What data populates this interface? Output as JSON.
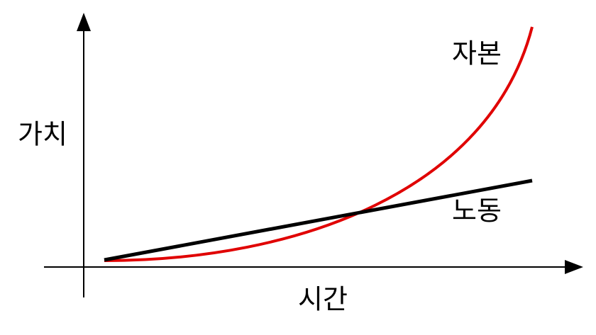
{
  "axes": {
    "y_label": "가치",
    "x_label": "시간"
  },
  "curves": [
    {
      "label": "자본"
    },
    {
      "label": "노동"
    }
  ]
}
